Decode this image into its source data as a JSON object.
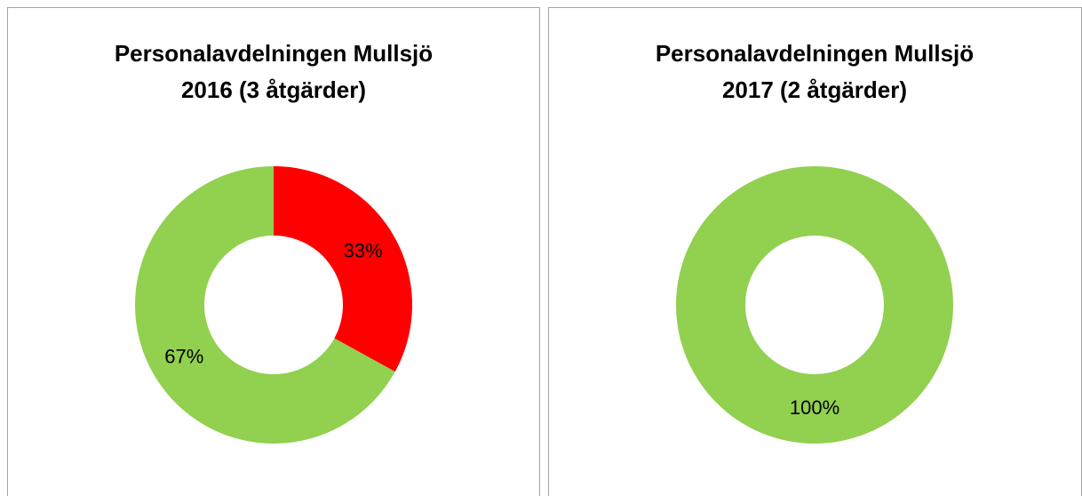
{
  "chart_data": [
    {
      "type": "donut",
      "title": [
        "Personalavdelningen Mullsjö",
        "2016 (3 åtgärder)"
      ],
      "values": [
        33,
        67
      ],
      "value_labels": [
        "33%",
        "67%"
      ],
      "colors": [
        "#ff0000",
        "#92d050"
      ]
    },
    {
      "type": "donut",
      "title": [
        "Personalavdelningen Mullsjö",
        "2017 (2 åtgärder)"
      ],
      "values": [
        100
      ],
      "value_labels": [
        "100%"
      ],
      "colors": [
        "#92d050"
      ]
    }
  ]
}
